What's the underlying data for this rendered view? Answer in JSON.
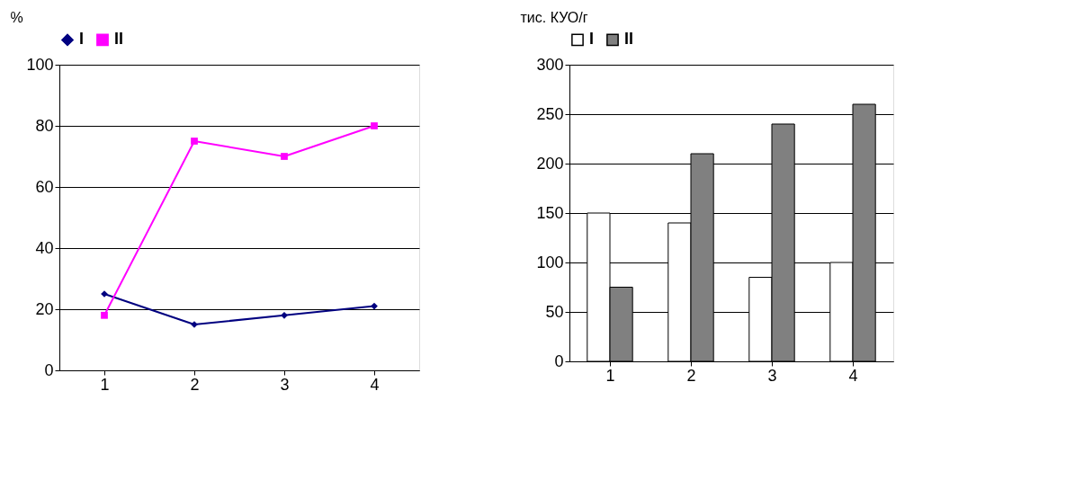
{
  "chart_data": [
    {
      "type": "line",
      "ylabel": "%",
      "categories": [
        "1",
        "2",
        "3",
        "4"
      ],
      "ylim": [
        0,
        100
      ],
      "yticks": [
        0,
        20,
        40,
        60,
        80,
        100
      ],
      "grid": "y",
      "legend": "top",
      "series": [
        {
          "name": "I",
          "color": "#000080",
          "marker": "diamond",
          "values": [
            25,
            15,
            18,
            21
          ]
        },
        {
          "name": "II",
          "color": "#ff00ff",
          "marker": "square",
          "values": [
            18,
            75,
            70,
            80
          ]
        }
      ]
    },
    {
      "type": "bar",
      "ylabel": "тис. КУО/г",
      "categories": [
        "1",
        "2",
        "3",
        "4"
      ],
      "ylim": [
        0,
        300
      ],
      "yticks": [
        0,
        50,
        100,
        150,
        200,
        250,
        300
      ],
      "grid": "y",
      "legend": "top",
      "series": [
        {
          "name": "I",
          "color": "#ffffff",
          "values": [
            150,
            140,
            85,
            100
          ]
        },
        {
          "name": "II",
          "color": "#808080",
          "values": [
            75,
            210,
            240,
            260
          ]
        }
      ]
    }
  ]
}
